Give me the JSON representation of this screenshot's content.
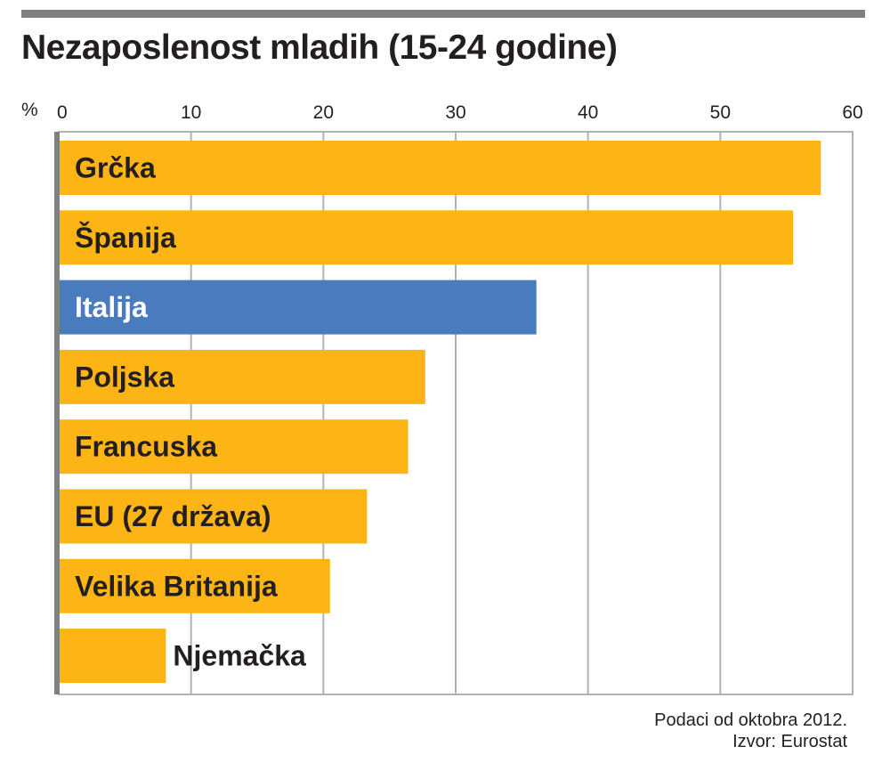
{
  "chart_data": {
    "type": "bar",
    "orientation": "horizontal",
    "title": "Nezaposlenost mladih (15-24 godine)",
    "unit_label": "%",
    "xlim": [
      0,
      60
    ],
    "ticks": [
      "0",
      "10",
      "20",
      "30",
      "40",
      "50",
      "60"
    ],
    "grid": true,
    "categories": [
      "Grčka",
      "Španija",
      "Italija",
      "Poljska",
      "Francuska",
      "EU (27 država)",
      "Velika Britanija",
      "Njemačka"
    ],
    "values": [
      57.6,
      55.5,
      36.1,
      27.7,
      26.4,
      23.3,
      20.5,
      8.1
    ],
    "highlight": "Italija",
    "colors": {
      "default": "#fdb515",
      "highlight": "#4a7bbe",
      "grid": "#b3b3b3",
      "axis": "#808080"
    },
    "footnote": [
      "Podaci od oktobra 2012.",
      "Izvor: Eurostat"
    ]
  }
}
